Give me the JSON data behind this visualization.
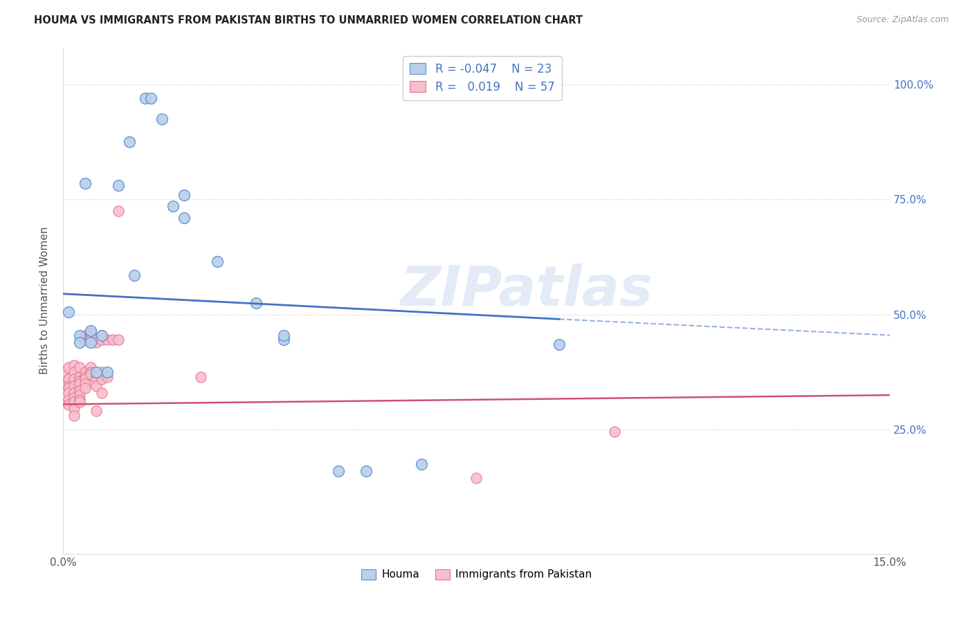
{
  "title": "HOUMA VS IMMIGRANTS FROM PAKISTAN BIRTHS TO UNMARRIED WOMEN CORRELATION CHART",
  "source": "Source: ZipAtlas.com",
  "ylabel": "Births to Unmarried Women",
  "xlim": [
    0.0,
    0.15
  ],
  "ylim": [
    -0.02,
    1.08
  ],
  "ytick_labels_right": [
    "100.0%",
    "75.0%",
    "50.0%",
    "25.0%"
  ],
  "ytick_positions_right": [
    1.0,
    0.75,
    0.5,
    0.25
  ],
  "watermark": "ZIPatlas",
  "houma_color": "#b8d0e8",
  "pakistan_color": "#f5bfcc",
  "houma_edge_color": "#5b8fd4",
  "pakistan_edge_color": "#e87090",
  "houma_line_color": "#4472c4",
  "pakistan_line_color": "#d05070",
  "houma_line_solid": [
    [
      0.0,
      0.545
    ],
    [
      0.09,
      0.49
    ]
  ],
  "houma_line_dash": [
    [
      0.09,
      0.49
    ],
    [
      0.15,
      0.455
    ]
  ],
  "pakistan_line": [
    [
      0.0,
      0.305
    ],
    [
      0.15,
      0.325
    ]
  ],
  "houma_points": [
    [
      0.001,
      0.505
    ],
    [
      0.003,
      0.455
    ],
    [
      0.003,
      0.44
    ],
    [
      0.004,
      0.785
    ],
    [
      0.005,
      0.44
    ],
    [
      0.005,
      0.465
    ],
    [
      0.006,
      0.375
    ],
    [
      0.007,
      0.455
    ],
    [
      0.008,
      0.375
    ],
    [
      0.01,
      0.78
    ],
    [
      0.012,
      0.875
    ],
    [
      0.013,
      0.585
    ],
    [
      0.015,
      0.97
    ],
    [
      0.016,
      0.97
    ],
    [
      0.018,
      0.925
    ],
    [
      0.02,
      0.735
    ],
    [
      0.022,
      0.76
    ],
    [
      0.022,
      0.71
    ],
    [
      0.028,
      0.615
    ],
    [
      0.035,
      0.525
    ],
    [
      0.04,
      0.445
    ],
    [
      0.04,
      0.455
    ],
    [
      0.09,
      0.435
    ],
    [
      0.055,
      0.16
    ],
    [
      0.065,
      0.175
    ],
    [
      0.05,
      0.16
    ]
  ],
  "pakistan_points": [
    [
      0.0,
      0.365
    ],
    [
      0.0,
      0.375
    ],
    [
      0.001,
      0.385
    ],
    [
      0.001,
      0.36
    ],
    [
      0.001,
      0.345
    ],
    [
      0.001,
      0.34
    ],
    [
      0.001,
      0.33
    ],
    [
      0.001,
      0.315
    ],
    [
      0.001,
      0.305
    ],
    [
      0.002,
      0.39
    ],
    [
      0.002,
      0.375
    ],
    [
      0.002,
      0.36
    ],
    [
      0.002,
      0.345
    ],
    [
      0.002,
      0.33
    ],
    [
      0.002,
      0.32
    ],
    [
      0.002,
      0.31
    ],
    [
      0.002,
      0.295
    ],
    [
      0.002,
      0.28
    ],
    [
      0.003,
      0.385
    ],
    [
      0.003,
      0.365
    ],
    [
      0.003,
      0.355
    ],
    [
      0.003,
      0.35
    ],
    [
      0.003,
      0.335
    ],
    [
      0.003,
      0.325
    ],
    [
      0.003,
      0.315
    ],
    [
      0.003,
      0.31
    ],
    [
      0.004,
      0.455
    ],
    [
      0.004,
      0.445
    ],
    [
      0.004,
      0.375
    ],
    [
      0.004,
      0.365
    ],
    [
      0.004,
      0.36
    ],
    [
      0.004,
      0.35
    ],
    [
      0.004,
      0.34
    ],
    [
      0.005,
      0.46
    ],
    [
      0.005,
      0.45
    ],
    [
      0.005,
      0.445
    ],
    [
      0.005,
      0.385
    ],
    [
      0.005,
      0.375
    ],
    [
      0.005,
      0.37
    ],
    [
      0.006,
      0.445
    ],
    [
      0.006,
      0.44
    ],
    [
      0.006,
      0.365
    ],
    [
      0.006,
      0.36
    ],
    [
      0.006,
      0.345
    ],
    [
      0.006,
      0.29
    ],
    [
      0.007,
      0.455
    ],
    [
      0.007,
      0.445
    ],
    [
      0.007,
      0.375
    ],
    [
      0.007,
      0.36
    ],
    [
      0.007,
      0.33
    ],
    [
      0.008,
      0.445
    ],
    [
      0.008,
      0.365
    ],
    [
      0.009,
      0.445
    ],
    [
      0.01,
      0.445
    ],
    [
      0.01,
      0.725
    ],
    [
      0.025,
      0.365
    ],
    [
      0.1,
      0.245
    ],
    [
      0.075,
      0.145
    ]
  ]
}
